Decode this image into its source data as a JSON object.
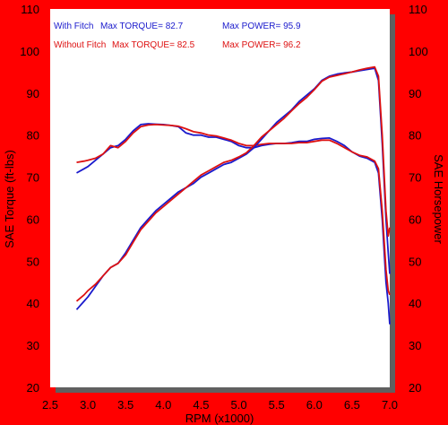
{
  "chart_data": {
    "type": "line",
    "xlabel": "RPM (x1000)",
    "ylabel_left": "SAE Torque (ft-lbs)",
    "ylabel_right": "SAE Horsepower",
    "xlim": [
      2.5,
      7.0
    ],
    "ylim": [
      20,
      110
    ],
    "x_ticks": [
      "2.5",
      "3.0",
      "3.5",
      "4.0",
      "4.5",
      "5.0",
      "5.5",
      "6.0",
      "6.5",
      "7.0"
    ],
    "y_ticks": [
      "20",
      "30",
      "40",
      "50",
      "60",
      "70",
      "80",
      "90",
      "100",
      "110"
    ],
    "grid": false,
    "legend": [
      {
        "name": "With Fitch",
        "torque_label": "Max TORQUE= 82.7",
        "power_label": "Max POWER= 95.9",
        "color": "#1a1acc"
      },
      {
        "name": "Without Fitch",
        "torque_label": "Max TORQUE= 82.5",
        "power_label": "Max POWER= 96.2",
        "color": "#dd1111"
      }
    ],
    "series": [
      {
        "name": "With Fitch",
        "measure": "torque",
        "color": "#1a1acc",
        "points": [
          [
            2.85,
            71
          ],
          [
            2.95,
            72
          ],
          [
            3.0,
            72.5
          ],
          [
            3.1,
            74
          ],
          [
            3.2,
            75.5
          ],
          [
            3.3,
            77
          ],
          [
            3.4,
            77.5
          ],
          [
            3.5,
            79
          ],
          [
            3.6,
            81
          ],
          [
            3.7,
            82.5
          ],
          [
            3.8,
            82.7
          ],
          [
            3.9,
            82.6
          ],
          [
            4.0,
            82.5
          ],
          [
            4.1,
            82.3
          ],
          [
            4.2,
            82
          ],
          [
            4.3,
            80.5
          ],
          [
            4.4,
            80
          ],
          [
            4.5,
            80
          ],
          [
            4.6,
            79.5
          ],
          [
            4.7,
            79.5
          ],
          [
            4.8,
            79
          ],
          [
            4.9,
            78.5
          ],
          [
            5.0,
            77.5
          ],
          [
            5.1,
            77
          ],
          [
            5.2,
            77
          ],
          [
            5.3,
            77.5
          ],
          [
            5.4,
            77.8
          ],
          [
            5.5,
            78
          ],
          [
            5.6,
            78
          ],
          [
            5.7,
            78.2
          ],
          [
            5.8,
            78.5
          ],
          [
            5.9,
            78.5
          ],
          [
            6.0,
            79
          ],
          [
            6.1,
            79.2
          ],
          [
            6.2,
            79.3
          ],
          [
            6.3,
            78.5
          ],
          [
            6.4,
            77.5
          ],
          [
            6.5,
            76
          ],
          [
            6.6,
            75
          ],
          [
            6.7,
            74.5
          ],
          [
            6.8,
            73.5
          ],
          [
            6.85,
            71
          ],
          [
            6.9,
            60
          ],
          [
            6.95,
            45
          ],
          [
            6.98,
            40
          ],
          [
            7.0,
            35
          ]
        ]
      },
      {
        "name": "Without Fitch",
        "measure": "torque",
        "color": "#dd1111",
        "points": [
          [
            2.85,
            73.5
          ],
          [
            2.95,
            73.8
          ],
          [
            3.0,
            74
          ],
          [
            3.1,
            74.5
          ],
          [
            3.2,
            75.5
          ],
          [
            3.3,
            77.5
          ],
          [
            3.4,
            77
          ],
          [
            3.5,
            78.5
          ],
          [
            3.6,
            80.5
          ],
          [
            3.7,
            82
          ],
          [
            3.8,
            82.4
          ],
          [
            3.9,
            82.5
          ],
          [
            4.0,
            82.4
          ],
          [
            4.1,
            82.3
          ],
          [
            4.2,
            82.1
          ],
          [
            4.3,
            81.5
          ],
          [
            4.4,
            80.8
          ],
          [
            4.5,
            80.5
          ],
          [
            4.6,
            80
          ],
          [
            4.7,
            79.8
          ],
          [
            4.8,
            79.3
          ],
          [
            4.9,
            78.8
          ],
          [
            5.0,
            78
          ],
          [
            5.1,
            77.5
          ],
          [
            5.2,
            77.5
          ],
          [
            5.3,
            77.8
          ],
          [
            5.4,
            78
          ],
          [
            5.5,
            78
          ],
          [
            5.6,
            78
          ],
          [
            5.7,
            78
          ],
          [
            5.8,
            78.2
          ],
          [
            5.9,
            78.2
          ],
          [
            6.0,
            78.5
          ],
          [
            6.1,
            78.8
          ],
          [
            6.2,
            78.8
          ],
          [
            6.3,
            78
          ],
          [
            6.4,
            77
          ],
          [
            6.5,
            76
          ],
          [
            6.6,
            75.2
          ],
          [
            6.7,
            74.8
          ],
          [
            6.8,
            73.8
          ],
          [
            6.85,
            72
          ],
          [
            6.9,
            62
          ],
          [
            6.95,
            48
          ],
          [
            6.98,
            43
          ],
          [
            7.0,
            42
          ]
        ]
      },
      {
        "name": "With Fitch",
        "measure": "power",
        "color": "#1a1acc",
        "points": [
          [
            2.85,
            38.5
          ],
          [
            2.95,
            40.5
          ],
          [
            3.0,
            41.5
          ],
          [
            3.1,
            44
          ],
          [
            3.2,
            46.5
          ],
          [
            3.3,
            48.5
          ],
          [
            3.4,
            49.5
          ],
          [
            3.5,
            52
          ],
          [
            3.6,
            55
          ],
          [
            3.7,
            58
          ],
          [
            3.8,
            60
          ],
          [
            3.9,
            62
          ],
          [
            4.0,
            63.5
          ],
          [
            4.1,
            65
          ],
          [
            4.2,
            66.5
          ],
          [
            4.3,
            67.5
          ],
          [
            4.4,
            68.5
          ],
          [
            4.5,
            70
          ],
          [
            4.6,
            71
          ],
          [
            4.7,
            72
          ],
          [
            4.8,
            73
          ],
          [
            4.9,
            73.5
          ],
          [
            5.0,
            74.5
          ],
          [
            5.1,
            75.5
          ],
          [
            5.2,
            77
          ],
          [
            5.3,
            79
          ],
          [
            5.4,
            81
          ],
          [
            5.5,
            83
          ],
          [
            5.6,
            84.5
          ],
          [
            5.7,
            86
          ],
          [
            5.8,
            88
          ],
          [
            5.9,
            89.5
          ],
          [
            6.0,
            91
          ],
          [
            6.1,
            93
          ],
          [
            6.2,
            94
          ],
          [
            6.3,
            94.5
          ],
          [
            6.4,
            94.8
          ],
          [
            6.5,
            95
          ],
          [
            6.6,
            95.3
          ],
          [
            6.7,
            95.6
          ],
          [
            6.8,
            95.9
          ],
          [
            6.85,
            93
          ],
          [
            6.9,
            78
          ],
          [
            6.95,
            60
          ],
          [
            6.98,
            52
          ],
          [
            7.0,
            47
          ]
        ]
      },
      {
        "name": "Without Fitch",
        "measure": "power",
        "color": "#dd1111",
        "points": [
          [
            2.85,
            40.5
          ],
          [
            2.95,
            42
          ],
          [
            3.0,
            43
          ],
          [
            3.1,
            44.5
          ],
          [
            3.2,
            46.5
          ],
          [
            3.3,
            48.5
          ],
          [
            3.4,
            49.5
          ],
          [
            3.5,
            51.5
          ],
          [
            3.6,
            54.5
          ],
          [
            3.7,
            57.5
          ],
          [
            3.8,
            59.5
          ],
          [
            3.9,
            61.5
          ],
          [
            4.0,
            63
          ],
          [
            4.1,
            64.5
          ],
          [
            4.2,
            66
          ],
          [
            4.3,
            67.5
          ],
          [
            4.4,
            69
          ],
          [
            4.5,
            70.5
          ],
          [
            4.6,
            71.5
          ],
          [
            4.7,
            72.5
          ],
          [
            4.8,
            73.5
          ],
          [
            4.9,
            74
          ],
          [
            5.0,
            74.8
          ],
          [
            5.1,
            75.8
          ],
          [
            5.2,
            77.5
          ],
          [
            5.3,
            79.5
          ],
          [
            5.4,
            81
          ],
          [
            5.5,
            82.5
          ],
          [
            5.6,
            84
          ],
          [
            5.7,
            85.8
          ],
          [
            5.8,
            87.5
          ],
          [
            5.9,
            89
          ],
          [
            6.0,
            90.8
          ],
          [
            6.1,
            92.8
          ],
          [
            6.2,
            93.8
          ],
          [
            6.3,
            94.2
          ],
          [
            6.4,
            94.6
          ],
          [
            6.5,
            95
          ],
          [
            6.6,
            95.5
          ],
          [
            6.7,
            95.9
          ],
          [
            6.8,
            96.2
          ],
          [
            6.85,
            94
          ],
          [
            6.9,
            80
          ],
          [
            6.95,
            62
          ],
          [
            6.98,
            56
          ],
          [
            7.0,
            58
          ]
        ]
      }
    ]
  }
}
